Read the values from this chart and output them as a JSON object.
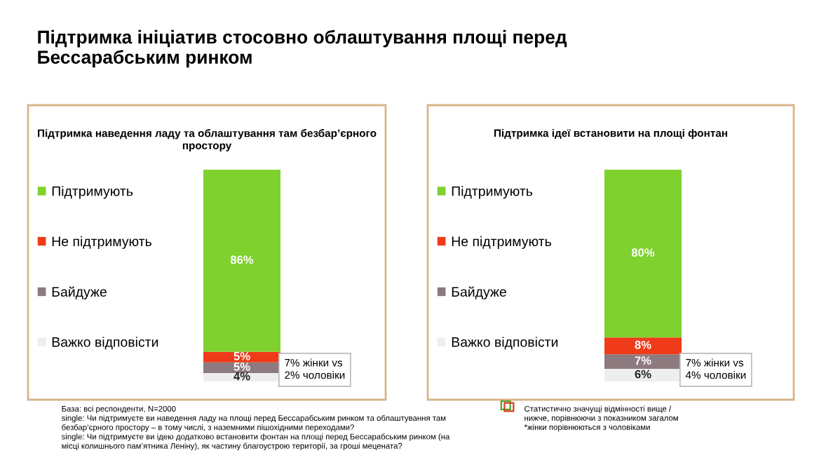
{
  "chart_data": [
    {
      "type": "bar",
      "stacked": true,
      "title": "Підтримка ініціатив стосовно облаштування площі перед\nБессарабським ринком",
      "subtitle": "Підтримка наведення ладу та облаштування там безбар’єрного\nпростору",
      "categories": [
        null
      ],
      "legend": "left",
      "tick_labels": false,
      "series": [
        {
          "name": "Важко відповісти",
          "color": "#eeeeee",
          "values": [
            4
          ],
          "value_labels": [
            "4%"
          ]
        },
        {
          "name": "Байдуже",
          "color": "#8c7a7e",
          "values": [
            5
          ],
          "value_labels": [
            "5%"
          ]
        },
        {
          "name": "Не підтримують",
          "color": "#ef3b1a",
          "values": [
            5
          ],
          "value_labels": [
            "5%"
          ]
        },
        {
          "name": "Підтримують",
          "color": "#7fd12e",
          "values": [
            86
          ],
          "value_labels": [
            "86%"
          ]
        }
      ],
      "annotations": [
        "7% жінки vs\n2% чоловіки",
        "База: всі респонденти, N=2000\nsingle: Чи підтримуєте ви наведення ладу на площі перед Бессарабським ринком та облаштування там\nбезбар’єрного простору – в тому числі, з наземними пішохідними переходами?\nsingle: Чи підтримуєте ви ідею додатково встановити фонтан на площі перед Бессарабським ринком (на\nмісці колишнього пам’ятника Леніну), як частину благоустрою території, за гроші мецената?"
      ]
    },
    {
      "type": "bar",
      "stacked": true,
      "subtitle": "Підтримка ідеї встановити на площі фонтан",
      "categories": [
        null
      ],
      "legend": "left",
      "tick_labels": false,
      "series": [
        {
          "name": "Важко відповісти",
          "color": "#eeeeee",
          "values": [
            6
          ],
          "value_labels": [
            "6%"
          ]
        },
        {
          "name": "Байдуже",
          "color": "#8c7a7e",
          "values": [
            7
          ],
          "value_labels": [
            "7%"
          ]
        },
        {
          "name": "Не підтримують",
          "color": "#ef3b1a",
          "values": [
            8
          ],
          "value_labels": [
            "8%"
          ]
        },
        {
          "name": "Підтримують",
          "color": "#7fd12e",
          "values": [
            80
          ],
          "value_labels": [
            "80%"
          ]
        }
      ],
      "annotations": [
        "7% жінки vs\n4% чоловіки",
        "Статистично значущі відмінності вище /\nнижче, порівнюючи з показником загалом\n*жінки порівнюються з чоловіками"
      ]
    }
  ]
}
